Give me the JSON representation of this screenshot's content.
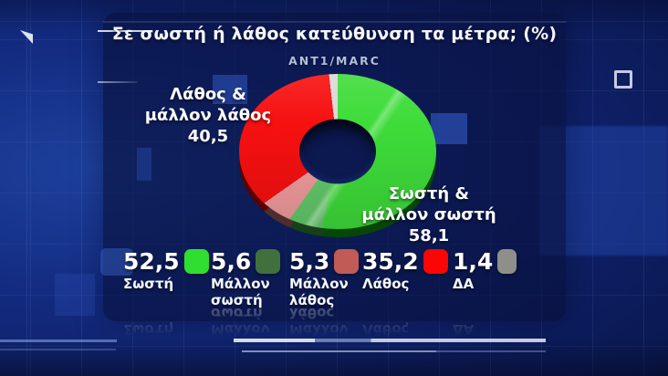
{
  "chart_data": {
    "type": "pie",
    "variant": "3d-donut",
    "title": "Σε σωστή ή λάθος κατεύθυνση τα μέτρα; (%)",
    "source": "ANT1/MARC",
    "unit": "%",
    "rotation_start_deg": 0,
    "categories": [
      "Σωστή",
      "Μάλλον σωστή",
      "Μάλλον λάθος",
      "Λάθος",
      "ΔΑ"
    ],
    "values": [
      52.5,
      5.6,
      5.3,
      35.2,
      1.4
    ],
    "segments": [
      {
        "label": "Σωστή",
        "value": 52.5,
        "display_value": "52,5",
        "legend_color": "#2fdf2f",
        "pie_color": "#3edc3a",
        "label_line1": "Σωστή",
        "label_line2": ""
      },
      {
        "label": "Μάλλον σωστή",
        "value": 5.6,
        "display_value": "5,6",
        "legend_color": "#41703f",
        "pie_color": "#63c96b",
        "label_line1": "Μάλλον",
        "label_line2": "σωστή"
      },
      {
        "label": "Μάλλον λάθος",
        "value": 5.3,
        "display_value": "5,3",
        "legend_color": "#c05b55",
        "pie_color": "#f19b9d",
        "label_line1": "Μάλλον",
        "label_line2": "λάθος"
      },
      {
        "label": "Λάθος",
        "value": 35.2,
        "display_value": "35,2",
        "legend_color": "#fb0505",
        "pie_color": "#f71010",
        "label_line1": "Λάθος",
        "label_line2": ""
      },
      {
        "label": "ΔΑ",
        "value": 1.4,
        "display_value": "1,4",
        "legend_color": "#8f8f89",
        "pie_color": "#d9d9d9",
        "label_line1": "ΔΑ",
        "label_line2": ""
      }
    ],
    "callouts": {
      "negative": {
        "line1": "Λάθος &",
        "line2": "μάλλον λάθος",
        "value": "40,5"
      },
      "positive": {
        "line1": "Σωστή &",
        "line2": "μάλλον σωστή",
        "value": "58,1"
      }
    }
  }
}
